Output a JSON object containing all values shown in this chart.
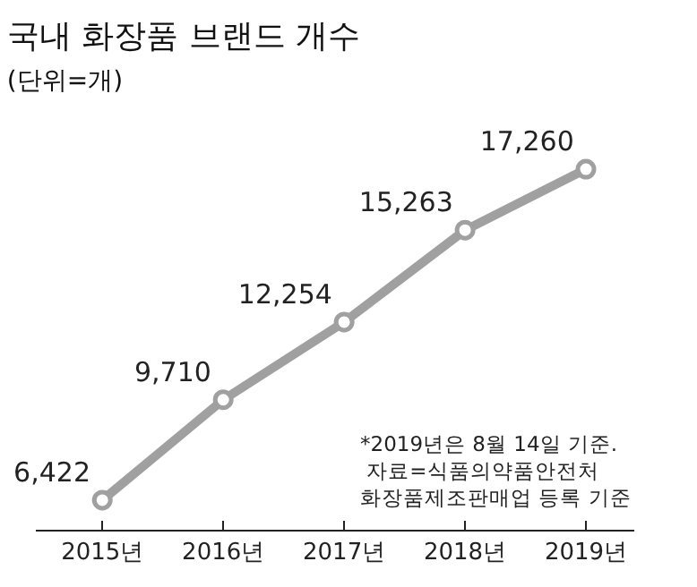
{
  "chart_data": {
    "type": "line",
    "title": "국내 화장품 브랜드 개수",
    "subtitle": "(단위=개)",
    "categories": [
      "2015년",
      "2016년",
      "2017년",
      "2018년",
      "2019년"
    ],
    "series": [
      {
        "color": "#a0a0a0",
        "values": [
          6422,
          9710,
          12254,
          15263,
          17260
        ],
        "value_labels": [
          "6,422",
          "9,710",
          "12,254",
          "15,263",
          "17,260"
        ]
      }
    ],
    "marker": "circle",
    "grid": false,
    "annotations": [
      "*2019년은 8월 14일 기준.\n 자료=식품의약품안전처\n화장품제조판매업 등록 기준"
    ]
  }
}
